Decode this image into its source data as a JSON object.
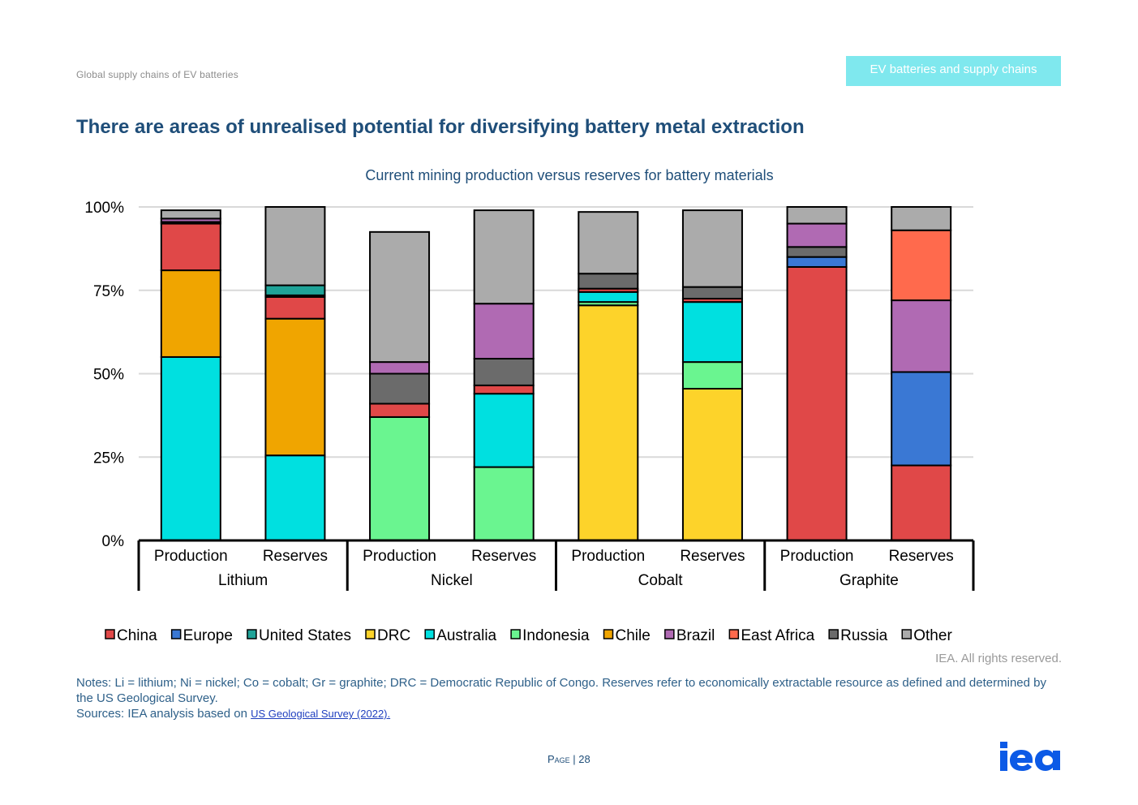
{
  "header": {
    "section": "Global supply chains of EV batteries",
    "report_tab": "EV batteries and supply chains"
  },
  "page_title": "There are areas of unrealised potential for diversifying battery metal extraction",
  "chart_data": {
    "type": "bar",
    "stacked": true,
    "title": "Current mining production versus reserves for battery materials",
    "ylim": [
      0,
      100
    ],
    "yticks": [
      "0%",
      "25%",
      "50%",
      "75%",
      "100%"
    ],
    "groups": [
      "Lithium",
      "Nickel",
      "Cobalt",
      "Graphite"
    ],
    "categories": [
      {
        "group": "Lithium",
        "label": "Production"
      },
      {
        "group": "Lithium",
        "label": "Reserves"
      },
      {
        "group": "Nickel",
        "label": "Production"
      },
      {
        "group": "Nickel",
        "label": "Reserves"
      },
      {
        "group": "Cobalt",
        "label": "Production"
      },
      {
        "group": "Cobalt",
        "label": "Reserves"
      },
      {
        "group": "Graphite",
        "label": "Production"
      },
      {
        "group": "Graphite",
        "label": "Reserves"
      }
    ],
    "series": [
      {
        "name": "China",
        "color": "#e04848",
        "values": [
          0,
          0,
          0,
          0,
          0,
          0,
          82,
          22.5
        ]
      },
      {
        "name": "Europe",
        "color": "#3a78d4",
        "values": [
          0,
          0,
          0,
          0,
          0,
          0,
          3,
          28
        ]
      },
      {
        "name": "United States",
        "color": "#1fa398",
        "values": [
          0,
          0,
          0,
          0,
          0,
          0,
          0,
          0
        ]
      },
      {
        "name": "DRC",
        "color": "#fdd32a",
        "values": [
          0,
          0,
          0,
          0,
          70.5,
          45.5,
          0,
          0
        ]
      },
      {
        "name": "Australia",
        "color": "#00e0e0",
        "values": [
          55,
          25.5,
          0,
          22,
          3,
          18,
          0,
          0
        ]
      },
      {
        "name": "Indonesia",
        "color": "#6af590",
        "values": [
          0,
          0,
          37,
          22,
          1,
          8,
          0,
          0
        ]
      },
      {
        "name": "Chile",
        "color": "#f0a500",
        "values": [
          26,
          41,
          0,
          0,
          0,
          0,
          0,
          0
        ]
      },
      {
        "name": "Brazil",
        "color": "#b06ab3",
        "values": [
          1,
          0,
          3.5,
          16.5,
          0,
          0,
          7,
          21.5
        ]
      },
      {
        "name": "East Africa",
        "color": "#ff6a4d",
        "values": [
          0,
          0,
          0,
          0,
          0,
          0,
          0,
          21
        ]
      },
      {
        "name": "Russia",
        "color": "#6b6b6b",
        "values": [
          0.5,
          0.5,
          9,
          8,
          4.5,
          3.5,
          3,
          0
        ]
      },
      {
        "name": "Other",
        "color": "#ababab",
        "values": [
          2.5,
          23.5,
          39,
          28,
          18.5,
          23,
          5,
          7
        ]
      }
    ],
    "extra_segments": [
      {
        "name": "China",
        "color": "#e04848",
        "values": [
          14,
          6.5,
          4,
          2.5,
          1,
          1,
          0,
          0
        ]
      },
      {
        "name": "United States",
        "color": "#1fa398",
        "values": [
          0,
          3,
          0,
          0,
          0,
          0,
          0,
          0
        ]
      }
    ],
    "legend": [
      {
        "name": "China",
        "color": "#e04848"
      },
      {
        "name": "Europe",
        "color": "#3a78d4"
      },
      {
        "name": "United States",
        "color": "#1fa398"
      },
      {
        "name": "DRC",
        "color": "#fdd32a"
      },
      {
        "name": "Australia",
        "color": "#00e0e0"
      },
      {
        "name": "Indonesia",
        "color": "#6af590"
      },
      {
        "name": "Chile",
        "color": "#f0a500"
      },
      {
        "name": "Brazil",
        "color": "#b06ab3"
      },
      {
        "name": "East Africa",
        "color": "#ff6a4d"
      },
      {
        "name": "Russia",
        "color": "#6b6b6b"
      },
      {
        "name": "Other",
        "color": "#ababab"
      }
    ],
    "legend_position": "bottom"
  },
  "rights": "IEA. All rights reserved.",
  "notes": {
    "line1": "Notes: Li = lithium; Ni = nickel; Co = cobalt; Gr = graphite; DRC = Democratic Republic of Congo. Reserves refer to economically extractable resource as defined and determined by the US Geological Survey.",
    "sources_prefix": "Sources: IEA analysis based on ",
    "sources_link": "US Geological Survey (2022)."
  },
  "footer": {
    "page_label": "Page",
    "separator": " | ",
    "page_number": "28"
  }
}
